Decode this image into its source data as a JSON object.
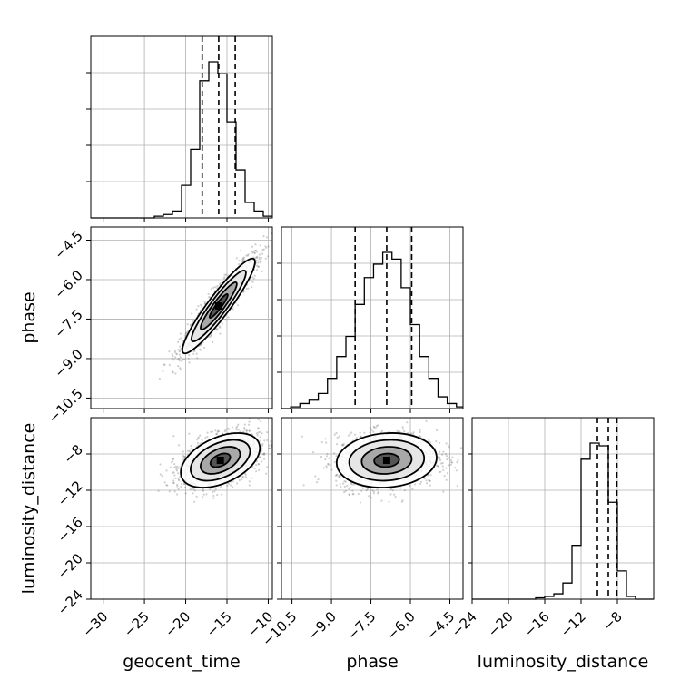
{
  "chart_data": {
    "type": "scatter",
    "title": "",
    "parameters": [
      "geocent_time",
      "phase",
      "luminosity_distance"
    ],
    "axis_labels": {
      "geocent_time": "geocent_time",
      "phase": "phase",
      "luminosity_distance": "luminosity_distance"
    },
    "ranges": {
      "geocent_time": [
        -31.5,
        -9.5
      ],
      "phase": [
        -10.9,
        -4.0
      ],
      "luminosity_distance": [
        -24.0,
        -4.0
      ]
    },
    "ticks": {
      "geocent_time": [
        -30,
        -25,
        -20,
        -15,
        -10
      ],
      "phase": [
        -10.5,
        -9.0,
        -7.5,
        -6.0,
        -4.5
      ],
      "luminosity_distance": [
        -24,
        -20,
        -16,
        -12,
        -8
      ]
    },
    "tick_labels": {
      "geocent_time": [
        "−30",
        "−25",
        "−20",
        "−15",
        "−10"
      ],
      "phase": [
        "−10.5",
        "−9.0",
        "−7.5",
        "−6.0",
        "−4.5"
      ],
      "luminosity_distance": [
        "−24",
        "−20",
        "−16",
        "−12",
        "−8"
      ]
    },
    "grid": true,
    "histograms": [
      {
        "parameter": "geocent_time",
        "bin_edges": [
          -31.5,
          -30.4,
          -29.3,
          -28.2,
          -27.1,
          -26.0,
          -24.9,
          -23.8,
          -22.7,
          -21.6,
          -20.5,
          -19.4,
          -18.3,
          -17.2,
          -16.1,
          -15.0,
          -13.9,
          -12.8,
          -11.7,
          -10.6,
          -9.5
        ],
        "counts": [
          0,
          0,
          0,
          0,
          0,
          0,
          0,
          1,
          2,
          4,
          19,
          40,
          80,
          91,
          84,
          56,
          28,
          9,
          4,
          1
        ],
        "quantiles": [
          -18.0,
          -16.0,
          -14.0
        ]
      },
      {
        "parameter": "phase",
        "bin_edges": [
          -10.9,
          -10.55,
          -10.2,
          -9.85,
          -9.5,
          -9.15,
          -8.8,
          -8.45,
          -8.1,
          -7.75,
          -7.4,
          -7.05,
          -6.7,
          -6.35,
          -6.0,
          -5.65,
          -5.3,
          -4.95,
          -4.6,
          -4.25,
          -4.0
        ],
        "counts": [
          0,
          1,
          3,
          5,
          9,
          18,
          31,
          43,
          62,
          78,
          86,
          93,
          89,
          72,
          50,
          31,
          18,
          7,
          3,
          1
        ],
        "quantiles": [
          -8.1,
          -6.9,
          -5.95
        ]
      },
      {
        "parameter": "luminosity_distance",
        "bin_edges": [
          -24.0,
          -23.0,
          -22.0,
          -21.0,
          -20.0,
          -19.0,
          -18.0,
          -17.0,
          -16.0,
          -15.0,
          -14.0,
          -13.0,
          -12.0,
          -11.0,
          -10.0,
          -9.0,
          -8.0,
          -7.0,
          -6.0,
          -5.0,
          -4.0
        ],
        "counts": [
          0,
          0,
          0,
          0,
          0,
          0,
          0,
          1,
          2,
          4,
          12,
          40,
          104,
          116,
          114,
          72,
          21,
          2,
          0,
          0
        ],
        "quantiles": [
          -10.2,
          -9.0,
          -8.05
        ]
      }
    ],
    "density_panels": [
      {
        "x": "geocent_time",
        "y": "phase",
        "center": [
          -16.0,
          -7.0
        ],
        "sd": [
          2.2,
          0.9
        ],
        "correlation": 0.93
      },
      {
        "x": "geocent_time",
        "y": "luminosity_distance",
        "center": [
          -15.8,
          -8.7
        ],
        "sd": [
          2.4,
          1.5
        ],
        "correlation": 0.45
      },
      {
        "x": "phase",
        "y": "luminosity_distance",
        "center": [
          -6.9,
          -8.7
        ],
        "sd": [
          0.95,
          1.5
        ],
        "correlation": 0.1
      }
    ],
    "contour_levels": [
      0.5,
      1.0,
      1.5,
      2.0
    ]
  }
}
